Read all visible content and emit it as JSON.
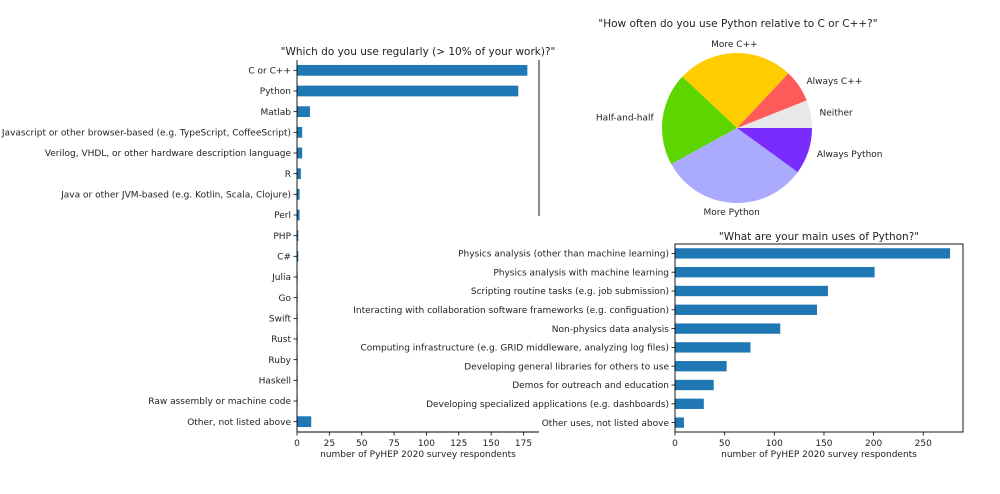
{
  "chart_data": [
    {
      "type": "bar",
      "orientation": "horizontal",
      "title": "\"Which do you use regularly (> 10% of your work)?\"",
      "xlabel": "number of PyHEP 2020 survey respondents",
      "ylabel": "",
      "xlim": [
        0,
        187
      ],
      "xticks": [
        0,
        25,
        50,
        75,
        100,
        125,
        150,
        175
      ],
      "grid": false,
      "bar_color": "#1f77b4",
      "categories": [
        "C or C++",
        "Python",
        "Matlab",
        "Javascript or other browser-based (e.g. TypeScript, CoffeeScript)",
        "Verilog, VHDL, or other hardware description language",
        "R",
        "Java or other JVM-based (e.g. Kotlin, Scala, Clojure)",
        "Perl",
        "PHP",
        "C#",
        "Julia",
        "Go",
        "Swift",
        "Rust",
        "Ruby",
        "Haskell",
        "Raw assembly or machine code",
        "Other, not listed above"
      ],
      "values": [
        178,
        171,
        10,
        4,
        4,
        3,
        2,
        2,
        1,
        1,
        0.5,
        0.5,
        0.5,
        0.5,
        0.5,
        0.5,
        0.5,
        11
      ]
    },
    {
      "type": "pie",
      "title": "\"How often do you use Python relative to C or C++?\"",
      "slices": [
        {
          "label": "Neither",
          "value": 6,
          "color": "#e8e8e8"
        },
        {
          "label": "Always C++",
          "value": 7,
          "color": "#ff5a5a"
        },
        {
          "label": "More C++",
          "value": 25,
          "color": "#ffcc00"
        },
        {
          "label": "Half-and-half",
          "value": 20,
          "color": "#5dd600"
        },
        {
          "label": "More Python",
          "value": 32,
          "color": "#aaaaff"
        },
        {
          "label": "Always Python",
          "value": 10,
          "color": "#7a2cff"
        }
      ]
    },
    {
      "type": "bar",
      "orientation": "horizontal",
      "title": "\"What are your main uses of Python?\"",
      "xlabel": "number of PyHEP 2020 survey respondents",
      "ylabel": "",
      "xlim": [
        0,
        290
      ],
      "xticks": [
        0,
        50,
        100,
        150,
        200,
        250
      ],
      "grid": false,
      "bar_color": "#1f77b4",
      "categories": [
        "Physics analysis (other than machine learning)",
        "Physics analysis with machine learning",
        "Scripting routine tasks (e.g. job submission)",
        "Interacting with collaboration software frameworks (e.g. configuation)",
        "Non-physics data analysis",
        "Computing infrastructure (e.g. GRID middleware, analyzing log files)",
        "Developing general libraries for others to use",
        "Demos for outreach and education",
        "Developing specialized applications (e.g. dashboards)",
        "Other uses, not listed above"
      ],
      "values": [
        277,
        201,
        154,
        143,
        106,
        76,
        52,
        39,
        29,
        9
      ]
    }
  ]
}
